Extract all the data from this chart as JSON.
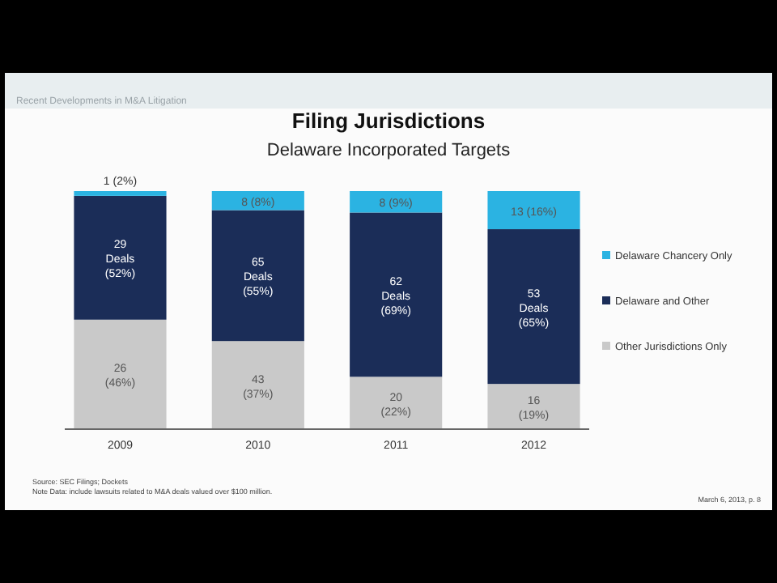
{
  "chart_data": {
    "type": "bar",
    "stacked": true,
    "title": "Filing Jurisdictions",
    "subtitle": "Delaware Incorporated Targets",
    "categories": [
      "2009",
      "2010",
      "2011",
      "2012"
    ],
    "series": [
      {
        "name": "Other Jurisdictions Only",
        "color": "#c9c9c9",
        "values": [
          46,
          37,
          22,
          19
        ],
        "value_labels": [
          "26\n(46%)",
          "43\n(37%)",
          "20\n(22%)",
          "16\n(19%)"
        ]
      },
      {
        "name": "Delaware and Other",
        "color": "#1b2d58",
        "values": [
          52,
          55,
          69,
          65
        ],
        "value_labels": [
          "29\nDeals\n(52%)",
          "65\nDeals\n(55%)",
          "62\nDeals\n(69%)",
          "53\nDeals\n(65%)"
        ]
      },
      {
        "name": "Delaware Chancery Only",
        "color": "#2bb3e2",
        "values": [
          2,
          8,
          9,
          16
        ],
        "value_labels": [
          "1 (2%)",
          "8 (8%)",
          "8 (9%)",
          "13 (16%)"
        ]
      }
    ],
    "ylim": [
      0,
      100
    ],
    "tick_labels": "x",
    "legend": "right",
    "annotations": [
      "Recent Developments in M&A Litigation",
      "Source: SEC Filings; Dockets",
      "Note Data: include lawsuits related to M&A deals valued over $100 million.",
      "March 6, 2013, p. 8"
    ]
  }
}
